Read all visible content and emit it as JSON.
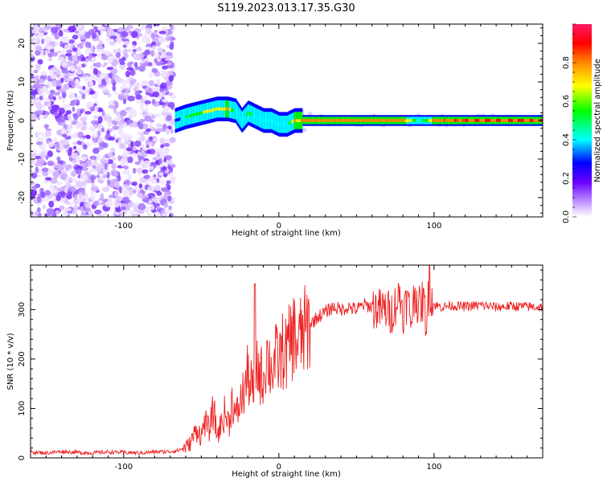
{
  "title": "S119.2023.013.17.35.G30",
  "colors": {
    "snr_line": "#ee2222",
    "axis": "#000000",
    "background": "#ffffff"
  },
  "chart_data": [
    {
      "type": "heatmap",
      "xlabel": "Height of straight line (km)",
      "ylabel": "Frequency (Hz)",
      "xlim": [
        -160,
        170
      ],
      "ylim": [
        -25,
        25
      ],
      "xticks": [
        -100,
        0,
        100
      ],
      "yticks": [
        -20,
        -10,
        0,
        10,
        20
      ],
      "grid": false,
      "colorbar": {
        "label": "Normalized spectral amplitude",
        "range": [
          0,
          1
        ],
        "ticks": [
          0.0,
          0.2,
          0.4,
          0.6,
          0.8
        ],
        "tick_labels": [
          "0.0",
          "0.2",
          "0.4",
          "0.6",
          "0.8"
        ],
        "colormap": [
          "#ffffff",
          "#a070ff",
          "#6a00ff",
          "#0000ff",
          "#00ffff",
          "#00ff00",
          "#ffff00",
          "#ff8800",
          "#ff0000",
          "#ff2060"
        ]
      },
      "noise_region_x": [
        -160,
        -68
      ],
      "trace": {
        "x": [
          -67,
          -60,
          -50,
          -40,
          -33,
          -28,
          -24,
          -20,
          -15,
          -10,
          -5,
          0,
          5,
          10,
          20,
          40,
          60,
          80,
          90,
          100,
          120,
          140,
          170
        ],
        "y": [
          0,
          1,
          2,
          3,
          3,
          2.5,
          0,
          2,
          1,
          0,
          0,
          -1,
          -1,
          0,
          0,
          0,
          0,
          0,
          0,
          0,
          0,
          0,
          0
        ],
        "amplitude": [
          0.3,
          0.55,
          0.7,
          0.75,
          0.8,
          0.5,
          0.45,
          0.6,
          0.5,
          0.45,
          0.4,
          0.45,
          0.5,
          0.8,
          0.85,
          0.85,
          0.85,
          0.85,
          0.5,
          0.85,
          0.9,
          0.9,
          0.9
        ]
      }
    },
    {
      "type": "line",
      "xlabel": "Height of straight line (km)",
      "ylabel": "SNR (10 * v/v)",
      "xlim": [
        -160,
        170
      ],
      "ylim": [
        0,
        390
      ],
      "xticks": [
        -100,
        0,
        100
      ],
      "yticks": [
        0,
        100,
        200,
        300
      ],
      "grid": false,
      "series": [
        {
          "x": [
            -160,
            -150,
            -140,
            -130,
            -120,
            -110,
            -100,
            -90,
            -80,
            -70,
            -65,
            -60,
            -57,
            -55,
            -52,
            -50,
            -48,
            -45,
            -42,
            -40,
            -38,
            -35,
            -32,
            -30,
            -28,
            -25,
            -22,
            -20,
            -18,
            -16,
            -15,
            -13,
            -10,
            -8,
            -5,
            -2,
            0,
            3,
            5,
            8,
            10,
            12,
            15,
            18,
            20,
            25,
            30,
            35,
            40,
            45,
            50,
            55,
            60,
            65,
            70,
            72,
            75,
            78,
            80,
            83,
            85,
            88,
            90,
            93,
            95,
            97,
            100,
            105,
            110,
            120,
            130,
            140,
            150,
            160,
            170
          ],
          "y": [
            12,
            10,
            13,
            11,
            10,
            12,
            11,
            10,
            12,
            13,
            15,
            22,
            30,
            45,
            60,
            40,
            75,
            55,
            100,
            45,
            60,
            90,
            70,
            120,
            80,
            110,
            140,
            170,
            145,
            130,
            190,
            175,
            160,
            210,
            180,
            200,
            195,
            220,
            210,
            240,
            250,
            230,
            250,
            260,
            270,
            285,
            295,
            305,
            300,
            305,
            300,
            310,
            305,
            300,
            300,
            290,
            310,
            330,
            295,
            320,
            280,
            340,
            300,
            320,
            275,
            345,
            310,
            305,
            308,
            306,
            309,
            305,
            307,
            306,
            305
          ]
        }
      ]
    }
  ]
}
